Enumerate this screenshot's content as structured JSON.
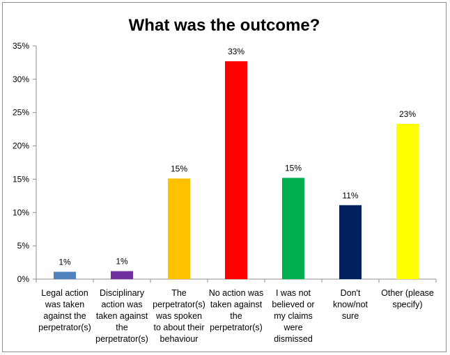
{
  "chart_data": {
    "type": "bar",
    "title": "What was the outcome?",
    "xlabel": "",
    "ylabel": "",
    "ylim": [
      0,
      35
    ],
    "yticks": [
      "0%",
      "5%",
      "10%",
      "15%",
      "20%",
      "25%",
      "30%",
      "35%"
    ],
    "grid": false,
    "legend": "none",
    "categories": [
      "Legal action was taken against the perpetrator(s)",
      "Disciplinary action was taken against the perpetrator(s)",
      "The perpetrator(s) was spoken to about their behaviour",
      "No action was taken against the perpetrator(s)",
      "I was not believed or my claims were dismissed",
      "Don't know/not sure",
      "Other (please specify)"
    ],
    "category_lines": [
      [
        "Legal action",
        "was taken",
        "against the",
        "perpetrator(s)"
      ],
      [
        "Disciplinary",
        "action was",
        "taken against",
        "the",
        "perpetrator(s)"
      ],
      [
        "The",
        "perpetrator(s)",
        "was spoken",
        "to about their",
        "behaviour"
      ],
      [
        "No action was",
        "taken against",
        "the",
        "perpetrator(s)"
      ],
      [
        "I was not",
        "believed or",
        "my claims",
        "were",
        "dismissed"
      ],
      [
        "Don't",
        "know/not",
        "sure"
      ],
      [
        "Other (please",
        "specify)"
      ]
    ],
    "values": [
      1.1,
      1.2,
      15.1,
      32.7,
      15.2,
      11.1,
      23.3
    ],
    "labels": [
      "1%",
      "1%",
      "15%",
      "33%",
      "15%",
      "11%",
      "23%"
    ],
    "colors": [
      "#4f81bd",
      "#7030a0",
      "#ffc000",
      "#ff0000",
      "#00b050",
      "#002060",
      "#ffff00"
    ]
  }
}
